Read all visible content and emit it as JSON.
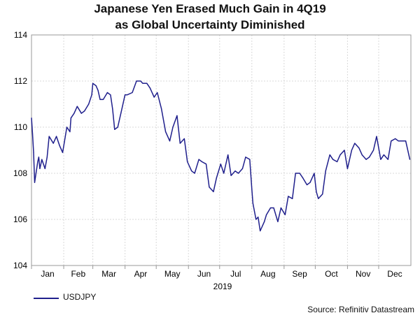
{
  "chart_data": {
    "type": "line",
    "title": "Japanese Yen Erased Much Gain in 4Q19",
    "subtitle": "as Global Uncertainty Diminished",
    "xlabel": "2019",
    "ylabel": "",
    "ylim": [
      104,
      114
    ],
    "yticks": [
      "104",
      "106",
      "108",
      "110",
      "112",
      "114"
    ],
    "xticks": [
      "Jan",
      "Feb",
      "Mar",
      "Apr",
      "May",
      "Jun",
      "Jul",
      "Aug",
      "Sep",
      "Oct",
      "Nov",
      "Dec"
    ],
    "year_label": "2019",
    "legend": "USDJPY",
    "source": "Source: Refinitiv Datastream",
    "line_color": "#1f1f8c",
    "grid": true,
    "series": [
      {
        "name": "USDJPY",
        "x": [
          "2019-01-01",
          "2019-01-02",
          "2019-01-03",
          "2019-01-04",
          "2019-01-07",
          "2019-01-08",
          "2019-01-09",
          "2019-01-10",
          "2019-01-11",
          "2019-01-14",
          "2019-01-16",
          "2019-01-18",
          "2019-01-22",
          "2019-01-25",
          "2019-01-28",
          "2019-01-31",
          "2019-02-04",
          "2019-02-07",
          "2019-02-08",
          "2019-02-11",
          "2019-02-14",
          "2019-02-18",
          "2019-02-21",
          "2019-02-25",
          "2019-02-28",
          "2019-03-01",
          "2019-03-04",
          "2019-03-06",
          "2019-03-08",
          "2019-03-11",
          "2019-03-15",
          "2019-03-18",
          "2019-03-20",
          "2019-03-22",
          "2019-03-25",
          "2019-03-28",
          "2019-04-01",
          "2019-04-03",
          "2019-04-08",
          "2019-04-12",
          "2019-04-16",
          "2019-04-18",
          "2019-04-22",
          "2019-04-25",
          "2019-04-29",
          "2019-05-02",
          "2019-05-06",
          "2019-05-10",
          "2019-05-14",
          "2019-05-17",
          "2019-05-21",
          "2019-05-24",
          "2019-05-28",
          "2019-05-31",
          "2019-06-04",
          "2019-06-07",
          "2019-06-11",
          "2019-06-14",
          "2019-06-18",
          "2019-06-21",
          "2019-06-25",
          "2019-06-28",
          "2019-07-02",
          "2019-07-05",
          "2019-07-09",
          "2019-07-12",
          "2019-07-16",
          "2019-07-19",
          "2019-07-23",
          "2019-07-26",
          "2019-07-30",
          "2019-08-01",
          "2019-08-02",
          "2019-08-05",
          "2019-08-07",
          "2019-08-09",
          "2019-08-13",
          "2019-08-15",
          "2019-08-19",
          "2019-08-22",
          "2019-08-26",
          "2019-08-29",
          "2019-09-02",
          "2019-09-05",
          "2019-09-09",
          "2019-09-12",
          "2019-09-16",
          "2019-09-19",
          "2019-09-23",
          "2019-09-26",
          "2019-09-30",
          "2019-10-02",
          "2019-10-04",
          "2019-10-08",
          "2019-10-11",
          "2019-10-15",
          "2019-10-18",
          "2019-10-22",
          "2019-10-25",
          "2019-10-29",
          "2019-11-01",
          "2019-11-05",
          "2019-11-08",
          "2019-11-12",
          "2019-11-15",
          "2019-11-19",
          "2019-11-22",
          "2019-11-26",
          "2019-11-29",
          "2019-12-03",
          "2019-12-06",
          "2019-12-10",
          "2019-12-13",
          "2019-12-17",
          "2019-12-20",
          "2019-12-24",
          "2019-12-27",
          "2019-12-31"
        ],
        "values": [
          110.4,
          109.7,
          108.9,
          107.6,
          108.5,
          108.7,
          108.2,
          108.4,
          108.6,
          108.2,
          108.7,
          109.6,
          109.3,
          109.6,
          109.2,
          108.9,
          110.0,
          109.8,
          110.4,
          110.6,
          110.9,
          110.6,
          110.7,
          111.0,
          111.4,
          111.9,
          111.8,
          111.6,
          111.2,
          111.2,
          111.5,
          111.4,
          110.8,
          109.9,
          110.0,
          110.6,
          111.4,
          111.4,
          111.5,
          112.0,
          112.0,
          111.9,
          111.9,
          111.7,
          111.3,
          111.5,
          110.8,
          109.8,
          109.4,
          110.0,
          110.5,
          109.3,
          109.5,
          108.5,
          108.1,
          108.0,
          108.6,
          108.5,
          108.4,
          107.4,
          107.2,
          107.8,
          108.4,
          108.0,
          108.8,
          107.9,
          108.1,
          108.0,
          108.2,
          108.7,
          108.6,
          107.3,
          106.7,
          106.0,
          106.1,
          105.5,
          105.9,
          106.2,
          106.5,
          106.5,
          105.9,
          106.5,
          106.2,
          107.0,
          106.9,
          108.0,
          108.0,
          107.8,
          107.5,
          107.6,
          108.0,
          107.2,
          106.9,
          107.1,
          108.1,
          108.8,
          108.6,
          108.5,
          108.8,
          109.0,
          108.2,
          109.0,
          109.3,
          109.1,
          108.8,
          108.6,
          108.7,
          109.0,
          109.6,
          108.6,
          108.8,
          108.6,
          109.4,
          109.5,
          109.4,
          109.4,
          109.4,
          108.6
        ]
      }
    ]
  }
}
